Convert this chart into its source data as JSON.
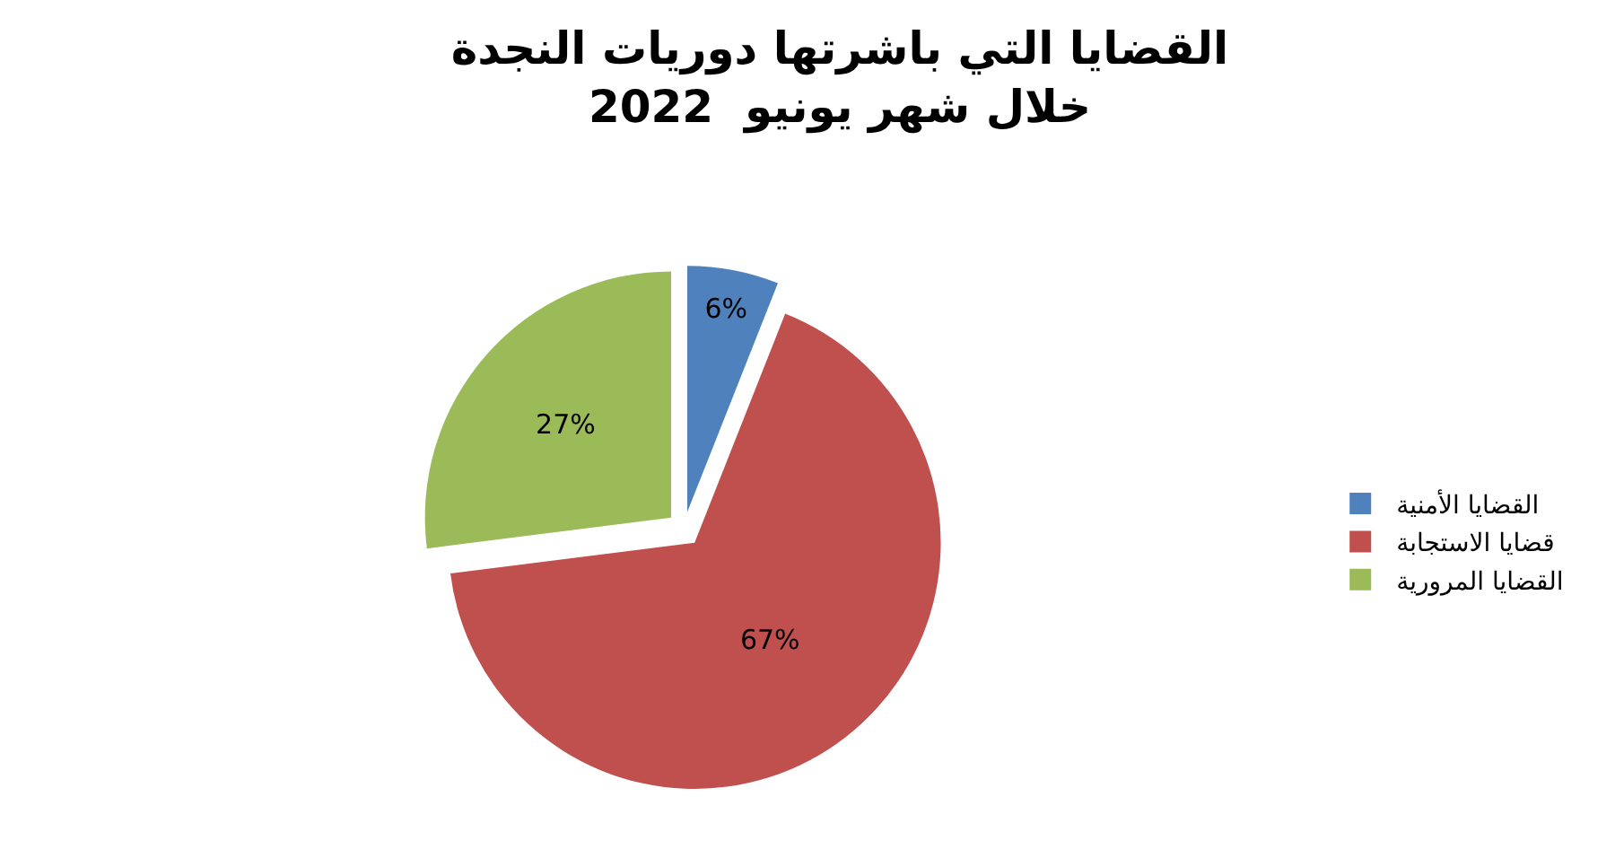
{
  "chart_data": {
    "type": "pie",
    "title": "القضايا التي باشرتها دوريات النجدة\nخلال شهر يونيو  2022",
    "categories": [
      "القضايا الأمنية",
      "قضايا الاستجابة",
      "القضايا المرورية"
    ],
    "values": [
      6,
      67,
      27
    ],
    "value_labels": [
      "6%",
      "67%",
      "27%"
    ],
    "colors": [
      "#4f81bd",
      "#c0504d",
      "#9bbb59"
    ],
    "legend": "right"
  }
}
